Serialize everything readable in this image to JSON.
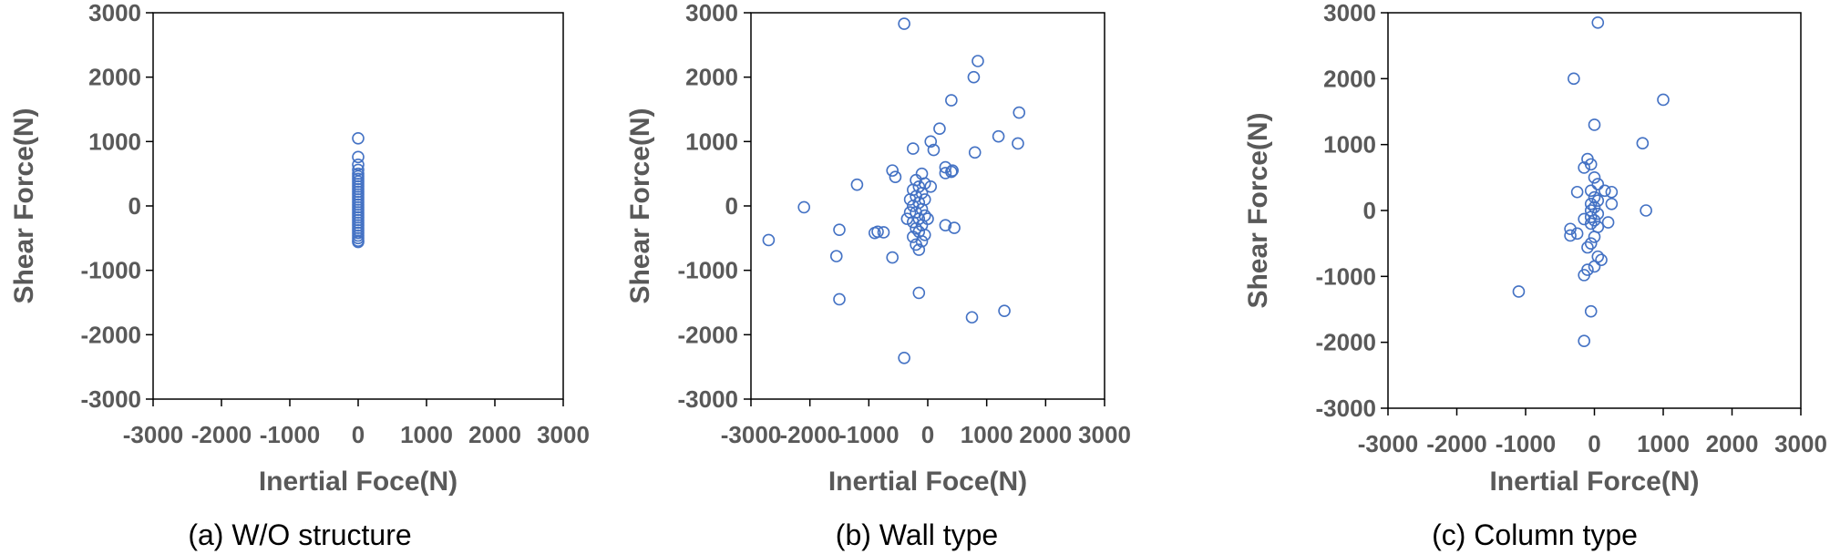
{
  "chart_data": [
    {
      "type": "scatter",
      "caption": "(a) W/O structure",
      "xlabel": "Inertial Foce(N)",
      "ylabel": "Shear Force(N)",
      "xlim": [
        -3000,
        3000
      ],
      "ylim": [
        -3000,
        3000
      ],
      "xticks": [
        "-3000",
        "-2000",
        "-1000",
        "0",
        "1000",
        "2000",
        "3000"
      ],
      "yticks": [
        "3000",
        "2000",
        "1000",
        "0",
        "-1000",
        "-2000",
        "-3000"
      ],
      "grid": false,
      "marker": "open-circle",
      "color": "#4472C4",
      "points": [
        [
          0,
          1050
        ],
        [
          0,
          760
        ],
        [
          0,
          640
        ],
        [
          0,
          560
        ],
        [
          0,
          500
        ],
        [
          0,
          460
        ],
        [
          0,
          420
        ],
        [
          0,
          380
        ],
        [
          0,
          340
        ],
        [
          0,
          300
        ],
        [
          0,
          260
        ],
        [
          0,
          220
        ],
        [
          0,
          180
        ],
        [
          0,
          140
        ],
        [
          0,
          100
        ],
        [
          0,
          60
        ],
        [
          0,
          20
        ],
        [
          0,
          -20
        ],
        [
          0,
          -60
        ],
        [
          0,
          -100
        ],
        [
          0,
          -140
        ],
        [
          0,
          -180
        ],
        [
          0,
          -220
        ],
        [
          0,
          -260
        ],
        [
          0,
          -300
        ],
        [
          0,
          -340
        ],
        [
          0,
          -380
        ],
        [
          0,
          -420
        ],
        [
          0,
          -460
        ],
        [
          0,
          -500
        ],
        [
          0,
          -540
        ],
        [
          0,
          -560
        ]
      ]
    },
    {
      "type": "scatter",
      "caption": "(b) Wall type",
      "xlabel": "Inertial Foce(N)",
      "ylabel": "Shear Force(N)",
      "xlim": [
        -3000,
        3000
      ],
      "ylim": [
        -3000,
        3000
      ],
      "xticks": [
        "-3000",
        "-2000",
        "-1000",
        "0",
        "1000",
        "2000",
        "3000"
      ],
      "yticks": [
        "3000",
        "2000",
        "1000",
        "0",
        "-1000",
        "-2000",
        "-3000"
      ],
      "grid": false,
      "marker": "open-circle",
      "color": "#4472C4",
      "points": [
        [
          -400,
          2830
        ],
        [
          850,
          2250
        ],
        [
          780,
          2000
        ],
        [
          400,
          1640
        ],
        [
          1550,
          1450
        ],
        [
          200,
          1200
        ],
        [
          1200,
          1080
        ],
        [
          1530,
          970
        ],
        [
          50,
          1000
        ],
        [
          100,
          870
        ],
        [
          -250,
          890
        ],
        [
          800,
          830
        ],
        [
          -600,
          550
        ],
        [
          -550,
          450
        ],
        [
          300,
          600
        ],
        [
          300,
          510
        ],
        [
          420,
          550
        ],
        [
          400,
          530
        ],
        [
          -1200,
          330
        ],
        [
          -2100,
          -20
        ],
        [
          -1500,
          -370
        ],
        [
          -900,
          -420
        ],
        [
          -850,
          -400
        ],
        [
          -750,
          -410
        ],
        [
          300,
          -300
        ],
        [
          450,
          -340
        ],
        [
          -1550,
          -780
        ],
        [
          -600,
          -800
        ],
        [
          -2700,
          -530
        ],
        [
          -1500,
          -1450
        ],
        [
          -150,
          -1350
        ],
        [
          -400,
          -2360
        ],
        [
          750,
          -1730
        ],
        [
          1300,
          -1630
        ],
        [
          -100,
          500
        ],
        [
          -200,
          400
        ],
        [
          -50,
          350
        ],
        [
          -150,
          300
        ],
        [
          -250,
          250
        ],
        [
          -100,
          200
        ],
        [
          -200,
          150
        ],
        [
          -50,
          100
        ],
        [
          -150,
          50
        ],
        [
          -250,
          0
        ],
        [
          -100,
          -50
        ],
        [
          -200,
          -100
        ],
        [
          -50,
          -150
        ],
        [
          -150,
          -200
        ],
        [
          -250,
          -250
        ],
        [
          -100,
          -300
        ],
        [
          -200,
          -350
        ],
        [
          -150,
          -400
        ],
        [
          -50,
          -450
        ],
        [
          -250,
          -480
        ],
        [
          -100,
          -550
        ],
        [
          -200,
          -600
        ],
        [
          -150,
          -680
        ],
        [
          50,
          300
        ],
        [
          0,
          -200
        ],
        [
          -300,
          -100
        ],
        [
          -350,
          -200
        ],
        [
          -300,
          100
        ]
      ]
    },
    {
      "type": "scatter",
      "caption": "(c) Column type",
      "xlabel": "Inertial Force(N)",
      "ylabel": "Shear Force(N)",
      "xlim": [
        -3000,
        3000
      ],
      "ylim": [
        -3000,
        3000
      ],
      "xticks": [
        "-3000",
        "-2000",
        "-1000",
        "0",
        "1000",
        "2000",
        "3000"
      ],
      "yticks": [
        "3000",
        "2000",
        "1000",
        "0",
        "-1000",
        "-2000",
        "-3000"
      ],
      "grid": false,
      "marker": "open-circle",
      "color": "#4472C4",
      "points": [
        [
          50,
          2850
        ],
        [
          -300,
          2000
        ],
        [
          1000,
          1680
        ],
        [
          0,
          1300
        ],
        [
          700,
          1020
        ],
        [
          -100,
          780
        ],
        [
          -50,
          700
        ],
        [
          -150,
          650
        ],
        [
          0,
          500
        ],
        [
          50,
          400
        ],
        [
          -50,
          300
        ],
        [
          150,
          300
        ],
        [
          -250,
          280
        ],
        [
          250,
          280
        ],
        [
          0,
          200
        ],
        [
          50,
          150
        ],
        [
          -50,
          100
        ],
        [
          250,
          100
        ],
        [
          0,
          50
        ],
        [
          -50,
          0
        ],
        [
          50,
          -50
        ],
        [
          -50,
          -100
        ],
        [
          0,
          -150
        ],
        [
          -150,
          -130
        ],
        [
          200,
          -180
        ],
        [
          -50,
          -200
        ],
        [
          50,
          -250
        ],
        [
          -250,
          -350
        ],
        [
          -350,
          -280
        ],
        [
          -350,
          -380
        ],
        [
          0,
          -400
        ],
        [
          -50,
          -500
        ],
        [
          -100,
          -560
        ],
        [
          50,
          -700
        ],
        [
          100,
          -750
        ],
        [
          0,
          -850
        ],
        [
          -100,
          -900
        ],
        [
          -150,
          -980
        ],
        [
          750,
          0
        ],
        [
          -1100,
          -1230
        ],
        [
          -50,
          -1530
        ],
        [
          -150,
          -1980
        ]
      ]
    }
  ]
}
